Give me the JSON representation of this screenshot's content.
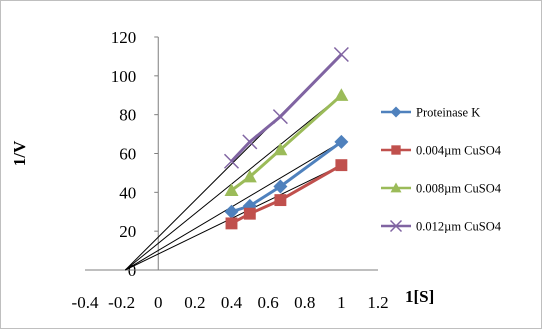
{
  "chart_data": {
    "type": "scatter",
    "xlabel": "1[S]",
    "ylabel": "1/V",
    "xlim": [
      -0.4,
      1.2
    ],
    "ylim": [
      0,
      120
    ],
    "x_ticks": [
      "-0.4",
      "-0.2",
      "0",
      "0.2",
      "0.4",
      "0.6",
      "0.8",
      "1",
      "1.2"
    ],
    "y_ticks": [
      "0",
      "20",
      "40",
      "60",
      "80",
      "100",
      "120"
    ],
    "grid": false,
    "legend_position": "right",
    "series": [
      {
        "name": "Proteinase K",
        "marker": "diamond",
        "color": "#4f81bd",
        "x": [
          0.4,
          0.5,
          0.667,
          1.0
        ],
        "y": [
          30,
          33,
          43,
          66
        ],
        "trendline": {
          "x0": -0.18,
          "y0": 0,
          "x1": 1.0,
          "y1": 66
        }
      },
      {
        "name": "0.004µm CuSO4",
        "marker": "square",
        "color": "#c0504d",
        "x": [
          0.4,
          0.5,
          0.667,
          1.0
        ],
        "y": [
          24,
          29,
          36,
          54
        ],
        "trendline": {
          "x0": -0.18,
          "y0": 0,
          "x1": 1.0,
          "y1": 54
        }
      },
      {
        "name": "0.008µm CuSO4",
        "marker": "triangle",
        "color": "#9bbb59",
        "x": [
          0.4,
          0.5,
          0.667,
          1.0
        ],
        "y": [
          41,
          48,
          62,
          90
        ],
        "trendline": {
          "x0": -0.18,
          "y0": 0,
          "x1": 1.0,
          "y1": 90
        }
      },
      {
        "name": "0.012µm CuSO4",
        "marker": "x",
        "color": "#8064a2",
        "x": [
          0.4,
          0.5,
          0.667,
          1.0
        ],
        "y": [
          56,
          66,
          79,
          111
        ],
        "trendline": {
          "x0": -0.18,
          "y0": 0,
          "x1": 1.0,
          "y1": 111
        }
      }
    ]
  }
}
